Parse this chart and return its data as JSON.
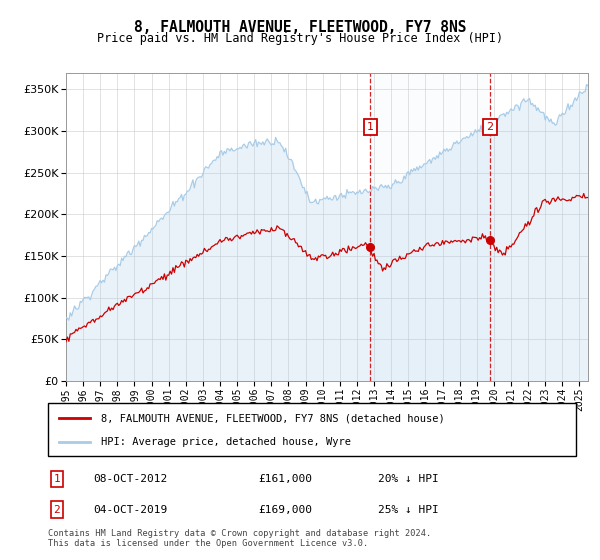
{
  "title": "8, FALMOUTH AVENUE, FLEETWOOD, FY7 8NS",
  "subtitle": "Price paid vs. HM Land Registry's House Price Index (HPI)",
  "legend_line1": "8, FALMOUTH AVENUE, FLEETWOOD, FY7 8NS (detached house)",
  "legend_line2": "HPI: Average price, detached house, Wyre",
  "annotation1_date": "08-OCT-2012",
  "annotation1_price": "£161,000",
  "annotation1_hpi": "20% ↓ HPI",
  "annotation2_date": "04-OCT-2019",
  "annotation2_price": "£169,000",
  "annotation2_hpi": "25% ↓ HPI",
  "footnote": "Contains HM Land Registry data © Crown copyright and database right 2024.\nThis data is licensed under the Open Government Licence v3.0.",
  "hpi_color": "#a8cce8",
  "price_color": "#cc0000",
  "vline_color": "#cc0000",
  "grid_color": "#cccccc",
  "ylim": [
    0,
    370000
  ],
  "yticks": [
    0,
    50000,
    100000,
    150000,
    200000,
    250000,
    300000,
    350000
  ],
  "xlim_start": 1995,
  "xlim_end": 2025.5,
  "sale1_x": 2012.77,
  "sale1_y": 161000,
  "sale2_x": 2019.77,
  "sale2_y": 169000
}
